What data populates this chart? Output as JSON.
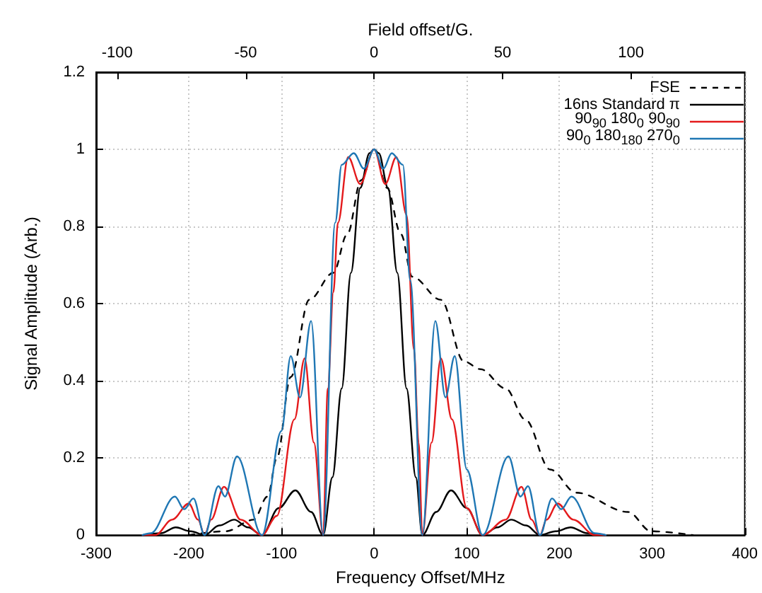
{
  "chart_data": {
    "type": "line",
    "xlabel": "Frequency Offset/MHz",
    "ylabel": "Signal Amplitude (Arb.)",
    "x2label": "Field offset/G.",
    "xlim": [
      -300,
      400
    ],
    "xticks": [
      -300,
      -200,
      -100,
      0,
      100,
      200,
      300,
      400
    ],
    "x2lim": [
      -108.2,
      144.3
    ],
    "x2ticks": [
      -100,
      -50,
      0,
      50,
      100
    ],
    "ylim": [
      0,
      1.2
    ],
    "yticks": [
      0,
      0.2,
      0.4,
      0.6,
      0.8,
      1,
      1.2
    ],
    "grid": true,
    "legend": "top right",
    "series": [
      {
        "name": "FSE",
        "color": "#000000",
        "line_style": "dashed",
        "x": [
          -200,
          -160,
          -130,
          -115,
          -105,
          -90,
          -70,
          -44,
          -29,
          -14,
          0,
          14,
          29,
          41,
          72,
          97,
          115,
          142,
          163,
          190,
          218,
          274,
          299,
          344
        ],
        "values": [
          0,
          0.01,
          0.04,
          0.1,
          0.2,
          0.41,
          0.61,
          0.68,
          0.78,
          0.92,
          1,
          0.9,
          0.78,
          0.67,
          0.61,
          0.45,
          0.43,
          0.38,
          0.3,
          0.17,
          0.11,
          0.06,
          0.01,
          0
        ]
      },
      {
        "name": "16ns Standard π",
        "color": "#000000",
        "line_style": "solid",
        "x": [
          -250,
          -230,
          -214,
          -198,
          -183,
          -167,
          -151,
          -136,
          -121,
          -103,
          -85,
          -68,
          -55,
          -45,
          -35,
          -25,
          -15,
          -5,
          0,
          5,
          15,
          25,
          35,
          45,
          52,
          67,
          83,
          100,
          117,
          133,
          148,
          164,
          179,
          196,
          212,
          230,
          250
        ],
        "values": [
          0,
          0.005,
          0.02,
          0.01,
          0,
          0.025,
          0.04,
          0.02,
          0,
          0.07,
          0.116,
          0.06,
          0,
          0.15,
          0.38,
          0.68,
          0.9,
          0.99,
          1,
          0.99,
          0.9,
          0.68,
          0.38,
          0.15,
          0,
          0.06,
          0.116,
          0.07,
          0,
          0.02,
          0.04,
          0.025,
          0,
          0.01,
          0.02,
          0.005,
          0
        ]
      },
      {
        "name": "90$_{90}$ 180$_{0}$ 90$_{90}$",
        "color": "#e41a1c",
        "line_style": "solid",
        "x": [
          -250,
          -236,
          -218,
          -200,
          -190,
          -183,
          -176,
          -162,
          -144,
          -121,
          -105,
          -86,
          -75,
          -65,
          -55,
          -50,
          -44,
          -39,
          -28,
          -15,
          0,
          12,
          24,
          35,
          43,
          48,
          52,
          62,
          72,
          84,
          100,
          117,
          142,
          159,
          170,
          179,
          186,
          198,
          215,
          238,
          250
        ],
        "values": [
          0,
          0,
          0.04,
          0.082,
          0.04,
          0,
          0.04,
          0.125,
          0.04,
          0,
          0.05,
          0.3,
          0.458,
          0.24,
          0,
          0.38,
          0.63,
          0.81,
          0.98,
          0.91,
          1,
          0.91,
          0.98,
          0.83,
          0.48,
          0.24,
          0,
          0.24,
          0.458,
          0.3,
          0.07,
          0,
          0.04,
          0.125,
          0.04,
          0,
          0.04,
          0.082,
          0.04,
          0,
          0
        ]
      },
      {
        "name": "90$_{0}$ 180$_{180}$ 270$_{0}$",
        "color": "#1f77b4",
        "line_style": "solid",
        "x": [
          -250,
          -241,
          -215,
          -205,
          -195,
          -183,
          -168,
          -161,
          -148,
          -121,
          -100,
          -90,
          -80,
          -68,
          -55,
          -42,
          -35,
          -22,
          -11,
          0,
          10,
          19,
          31,
          39,
          52,
          66,
          77,
          87,
          100,
          117,
          145,
          158,
          166,
          179,
          192,
          202,
          213,
          238,
          250
        ],
        "values": [
          0,
          0.005,
          0.1,
          0.067,
          0.095,
          0,
          0.127,
          0.1,
          0.204,
          0,
          0.27,
          0.464,
          0.357,
          0.555,
          0,
          0.81,
          0.96,
          0.99,
          0.95,
          1,
          0.95,
          0.99,
          0.96,
          0.66,
          0,
          0.555,
          0.357,
          0.464,
          0.17,
          0,
          0.204,
          0.1,
          0.127,
          0,
          0.095,
          0.067,
          0.1,
          0.005,
          0
        ]
      }
    ]
  }
}
